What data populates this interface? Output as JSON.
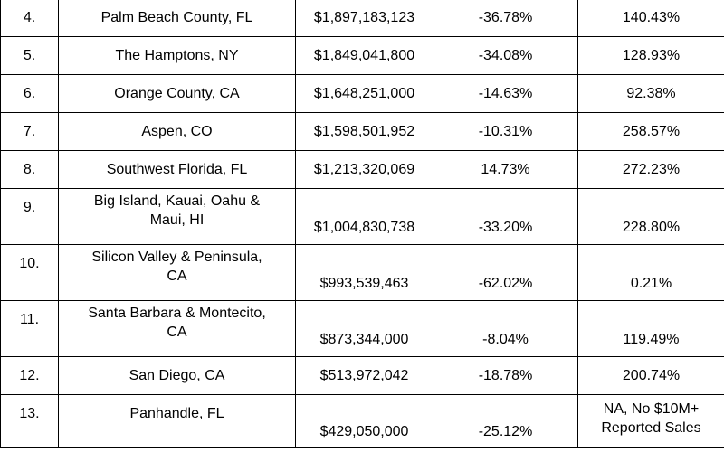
{
  "rows": [
    {
      "rank": "4.",
      "market": "Palm Beach County, FL",
      "volume": "$1,897,183,123",
      "change1": "-36.78%",
      "change2": "140.43%"
    },
    {
      "rank": "5.",
      "market": "The Hamptons, NY",
      "volume": "$1,849,041,800",
      "change1": "-34.08%",
      "change2": "128.93%"
    },
    {
      "rank": "6.",
      "market": "Orange County, CA",
      "volume": "$1,648,251,000",
      "change1": "-14.63%",
      "change2": "92.38%"
    },
    {
      "rank": "7.",
      "market": "Aspen, CO",
      "volume": "$1,598,501,952",
      "change1": "-10.31%",
      "change2": "258.57%"
    },
    {
      "rank": "8.",
      "market": "Southwest Florida, FL",
      "volume": "$1,213,320,069",
      "change1": "14.73%",
      "change2": "272.23%"
    },
    {
      "rank": "9.",
      "market_line1": "Big Island, Kauai, Oahu &",
      "market_line2": "Maui, HI",
      "volume": "$1,004,830,738",
      "change1": "-33.20%",
      "change2": "228.80%"
    },
    {
      "rank": "10.",
      "market_line1": "Silicon Valley & Peninsula,",
      "market_line2": "CA",
      "volume": "$993,539,463",
      "change1": "-62.02%",
      "change2": "0.21%"
    },
    {
      "rank": "11.",
      "market_line1": "Santa Barbara & Montecito,",
      "market_line2": "CA",
      "volume": "$873,344,000",
      "change1": "-8.04%",
      "change2": "119.49%"
    },
    {
      "rank": "12.",
      "market": "San Diego, CA",
      "volume": "$513,972,042",
      "change1": "-18.78%",
      "change2": "200.74%"
    },
    {
      "rank": "13.",
      "market": "Panhandle, FL",
      "volume": "$429,050,000",
      "change1": "-25.12%",
      "change2_line1": "NA, No $10M+",
      "change2_line2": "Reported Sales"
    }
  ]
}
